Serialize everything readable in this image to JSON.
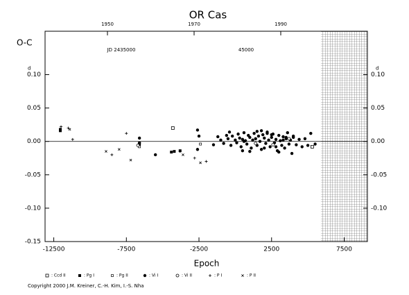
{
  "chart_data": {
    "type": "scatter",
    "title": "OR Cas",
    "xlabel": "Epoch",
    "ylabel": "O-C",
    "unit": "d",
    "top_labels": [
      "JD 2435000",
      "45000"
    ],
    "copyright": "Copyright 2000 J.M. Kreiner, C.-H. Kim, I.-S. Nha",
    "xlim": [
      -13100,
      9100
    ],
    "xticks": [
      -12500,
      -7500,
      -2500,
      2500,
      7500
    ],
    "x2lim": [
      1935.6,
      2010
    ],
    "x2ticks": [
      1950,
      1970,
      1990
    ],
    "ylim": [
      -0.15,
      0.165
    ],
    "yticks": [
      {
        "value": -0.15,
        "label": "-0.15"
      },
      {
        "value": -0.1,
        "label": "-0.10"
      },
      -0.05,
      {
        "value": 0,
        "label": "0.00"
      },
      0.05,
      {
        "value": 0.1,
        "label": "0.10"
      }
    ],
    "y2ticks": [
      {
        "value": -0.1,
        "label": "-0.10"
      },
      -0.05,
      {
        "value": 0,
        "label": "0.00"
      },
      0.05,
      {
        "value": 0.1,
        "label": "0.10"
      }
    ],
    "shaded_region": [
      5900,
      9100
    ],
    "series": [
      {
        "name": ": Ccd II",
        "marker": "open-square",
        "x": [
          -4300,
          5300
        ],
        "y": [
          0.02,
          -0.008
        ]
      },
      {
        "name": ": Pg I",
        "marker": "filled-square",
        "x": [
          -12050,
          -12050,
          -4400,
          -4200,
          -3800,
          -6600
        ],
        "y": [
          0.016,
          0.018,
          -0.016,
          -0.015,
          -0.014,
          -0.004
        ]
      },
      {
        "name": ": Pg II",
        "marker": "small-open-square",
        "x": [
          -6600,
          -2400
        ],
        "y": [
          -0.008,
          -0.004
        ]
      },
      {
        "name": ": Vi I",
        "marker": "filled-circle",
        "x": [
          -6600,
          -6600,
          -5500,
          -2600,
          -2500,
          -2600,
          -1500,
          -1200,
          -1000,
          -800,
          -600,
          -500,
          -300,
          -200,
          0,
          100,
          200,
          300,
          400,
          500,
          600,
          700,
          800,
          900,
          1000,
          1100,
          1200,
          1300,
          1400,
          1500,
          1600,
          1700,
          1800,
          1900,
          2000,
          2100,
          2200,
          2300,
          2400,
          2500,
          2600,
          2700,
          2800,
          2900,
          3000,
          3100,
          3200,
          3300,
          3400,
          3500,
          3600,
          3700,
          3800,
          3900,
          4000,
          4200,
          4400,
          4600,
          4800,
          5000,
          5200,
          5500,
          1000,
          1500,
          2000,
          2500,
          3000,
          3500,
          4000,
          500,
          -400,
          2200,
          2800,
          3300,
          1800,
          600
        ],
        "y": [
          0.005,
          -0.002,
          -0.02,
          0.017,
          0.008,
          -0.012,
          -0.005,
          0.007,
          0.002,
          -0.003,
          0.009,
          0.004,
          -0.006,
          0.008,
          0.002,
          -0.002,
          0.011,
          0.005,
          -0.008,
          0.003,
          0.013,
          0.001,
          -0.004,
          0.009,
          0.006,
          -0.01,
          0.002,
          0.012,
          0.004,
          -0.006,
          0.008,
          0.0,
          -0.012,
          0.01,
          0.005,
          -0.003,
          0.014,
          0.002,
          -0.008,
          0.006,
          0.011,
          -0.002,
          0.003,
          -0.014,
          0.009,
          0.001,
          -0.006,
          0.007,
          -0.01,
          0.004,
          0.013,
          -0.004,
          0.002,
          -0.018,
          0.006,
          -0.005,
          0.003,
          -0.008,
          0.004,
          -0.006,
          0.012,
          -0.004,
          -0.015,
          0.015,
          -0.01,
          0.01,
          -0.016,
          0.006,
          0.008,
          -0.014,
          0.014,
          0.012,
          -0.008,
          0.002,
          0.016,
          0.0
        ]
      },
      {
        "name": ": Vi II",
        "marker": "open-circle",
        "x": [
          -6700,
          1400,
          2600,
          3700
        ],
        "y": [
          -0.006,
          -0.003,
          -0.005,
          0.004
        ]
      },
      {
        "name": ": P I",
        "marker": "plus",
        "x": [
          -12000,
          -11500,
          -8500,
          -7500,
          -3800,
          -2800,
          -2000,
          -11200
        ],
        "y": [
          0.022,
          0.02,
          -0.02,
          0.012,
          -0.015,
          -0.025,
          -0.03,
          0.003
        ]
      },
      {
        "name": ": P II",
        "marker": "cross",
        "x": [
          -11400,
          -8900,
          -7200,
          -3600,
          -2400,
          -8000
        ],
        "y": [
          0.018,
          -0.015,
          -0.028,
          -0.02,
          -0.032,
          -0.012
        ]
      }
    ]
  }
}
